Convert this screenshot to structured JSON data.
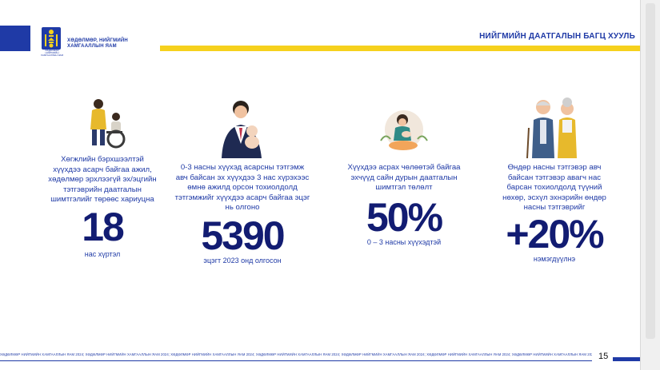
{
  "header": {
    "ministry_line1": "ХӨДӨЛМӨР, НИЙГМИЙН",
    "ministry_line2": "ХАМГААЛЛЫН ЯАМ",
    "emblem_caption": "ХӨДӨЛМӨР, НИЙГМИЙН ХАМГААЛЛЫН ЯАМ",
    "title": "НИЙГМИЙН ДААТГАЛЫН БАГЦ ХУУЛЬ"
  },
  "columns": [
    {
      "description": "Хөгжлийн бэрхшээлтэй хүүхдээ асарч байгаа ажил, хөдөлмөр эрхлээгүй эх/эцгийн тэтгэврийн даатгалын шимтгэлийг төрөөс хариуцна",
      "big_value": "18",
      "caption": "нас хүртэл",
      "icon": "wheelchair-family-icon"
    },
    {
      "description": "0-3 насны хүүхэд асарсны тэтгэмж авч байсан эх хүүхдээ 3 нас хүрэхээс өмнө ажилд орсон тохиолдолд тэтгэмжийг хүүхдээ асарч байгаа эцэг нь олгоно",
      "big_value": "5390",
      "caption": "эцэгт 2023 онд олгосон",
      "icon": "father-baby-icon"
    },
    {
      "description": "Хүүхдээ асрах чөлөөтэй байгаа эхчүүд сайн дурын даатгалын шимтгэл төлөлт",
      "big_value": "50%",
      "caption": "0 – 3 насны хүүхэдтэй",
      "icon": "mother-baby-icon"
    },
    {
      "description": "Өндөр насны тэтгэвэр авч байсан тэтгэвэр авагч нас барсан тохиолдолд түүний нөхөр, эсхүл эхнэрийн өндөр насны тэтгэврийг",
      "big_value": "+20%",
      "caption": "нэмэгдүүлнэ",
      "icon": "elderly-couple-icon"
    }
  ],
  "footer": {
    "ticker": "ХӨДӨЛМӨР НИЙГМИЙН ХАМГААЛЛЫН ЯАМ 2024; ХӨДӨЛМӨР НИЙГМИЙН ХАМГААЛЛЫН ЯАМ 2024; ХӨДӨЛМӨР НИЙГМИЙН ХАМГААЛЛЫН ЯАМ 2024; ХӨДӨЛМӨР НИЙГМИЙН ХАМГААЛЛЫН ЯАМ 2024; ХӨДӨЛМӨР НИЙГМИЙН ХАМГААЛЛЫН ЯАМ 2024; ХӨДӨЛМӨР НИЙГМИЙН ХАМГААЛЛЫН ЯАМ 2024; ХӨДӨЛМӨР НИЙГМИЙН ХАМГААЛЛЫН ЯАМ 2024; ХӨДӨЛМӨР НИЙГМИЙН ХАМГААЛЛЫН ЯАМ",
    "page_number": "15"
  },
  "colors": {
    "brand_blue": "#1f3aa6",
    "dark_navy": "#121c72",
    "accent_yellow": "#f6d11d"
  }
}
